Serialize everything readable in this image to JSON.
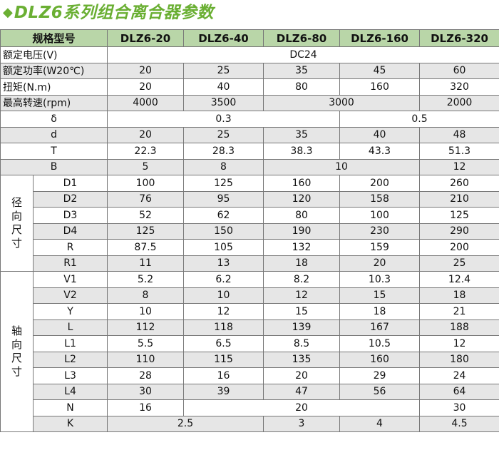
{
  "title": {
    "icon": "diamond-icon",
    "text": "DLZ6系列组合离合器参数"
  },
  "header": {
    "model_label": "规格型号",
    "models": [
      "DLZ6-20",
      "DLZ6-40",
      "DLZ6-80",
      "DLZ6-160",
      "DLZ6-320"
    ]
  },
  "rows": {
    "voltage": {
      "label": "额定电压(V)",
      "value": "DC24"
    },
    "power": {
      "label": "额定功率(W20℃)",
      "values": [
        "20",
        "25",
        "35",
        "45",
        "60"
      ]
    },
    "torque": {
      "label": "扭矩(N.m)",
      "values": [
        "20",
        "40",
        "80",
        "160",
        "320"
      ]
    },
    "speed": {
      "label": "最高转速(rpm)",
      "v1": "4000",
      "v2": "3500",
      "v3": "3000",
      "v4": "2000"
    },
    "delta": {
      "label": "δ",
      "v1": "0.3",
      "v2": "0.5"
    },
    "d": {
      "label": "d",
      "values": [
        "20",
        "25",
        "35",
        "40",
        "48"
      ]
    },
    "T": {
      "label": "T",
      "values": [
        "22.3",
        "28.3",
        "38.3",
        "43.3",
        "51.3"
      ]
    },
    "B": {
      "label": "B",
      "v1": "5",
      "v2": "8",
      "v3": "10",
      "v4": "12"
    }
  },
  "radial": {
    "group_label": "径向尺寸",
    "rows": [
      {
        "label": "D1",
        "values": [
          "100",
          "125",
          "160",
          "200",
          "260"
        ]
      },
      {
        "label": "D2",
        "values": [
          "76",
          "95",
          "120",
          "158",
          "210"
        ]
      },
      {
        "label": "D3",
        "values": [
          "52",
          "62",
          "80",
          "100",
          "125"
        ]
      },
      {
        "label": "D4",
        "values": [
          "125",
          "150",
          "190",
          "230",
          "290"
        ]
      },
      {
        "label": "R",
        "values": [
          "87.5",
          "105",
          "132",
          "159",
          "200"
        ]
      },
      {
        "label": "R1",
        "values": [
          "11",
          "13",
          "18",
          "20",
          "25"
        ]
      }
    ]
  },
  "axial": {
    "group_label": "轴向尺寸",
    "rows": [
      {
        "label": "V1",
        "values": [
          "5.2",
          "6.2",
          "8.2",
          "10.3",
          "12.4"
        ]
      },
      {
        "label": "V2",
        "values": [
          "8",
          "10",
          "12",
          "15",
          "18"
        ]
      },
      {
        "label": "Y",
        "values": [
          "10",
          "12",
          "15",
          "18",
          "21"
        ]
      },
      {
        "label": "L",
        "values": [
          "112",
          "118",
          "139",
          "167",
          "188"
        ]
      },
      {
        "label": "L1",
        "values": [
          "5.5",
          "6.5",
          "8.5",
          "10.5",
          "12"
        ]
      },
      {
        "label": "L2",
        "values": [
          "110",
          "115",
          "135",
          "160",
          "180"
        ]
      },
      {
        "label": "L3",
        "values": [
          "28",
          "16",
          "20",
          "29",
          "24"
        ]
      },
      {
        "label": "L4",
        "values": [
          "30",
          "39",
          "47",
          "56",
          "64"
        ]
      }
    ]
  },
  "tail": {
    "N": {
      "label": "N",
      "v1": "16",
      "v2": "20",
      "v3": "30"
    },
    "K": {
      "label": "K",
      "v1": "2.5",
      "v2": "3",
      "v3": "4",
      "v4": "4.5"
    }
  },
  "colors": {
    "accent": "#6aaf33",
    "header_bg": "#b9d6a8",
    "alt_row_bg": "#e6e6e6"
  }
}
